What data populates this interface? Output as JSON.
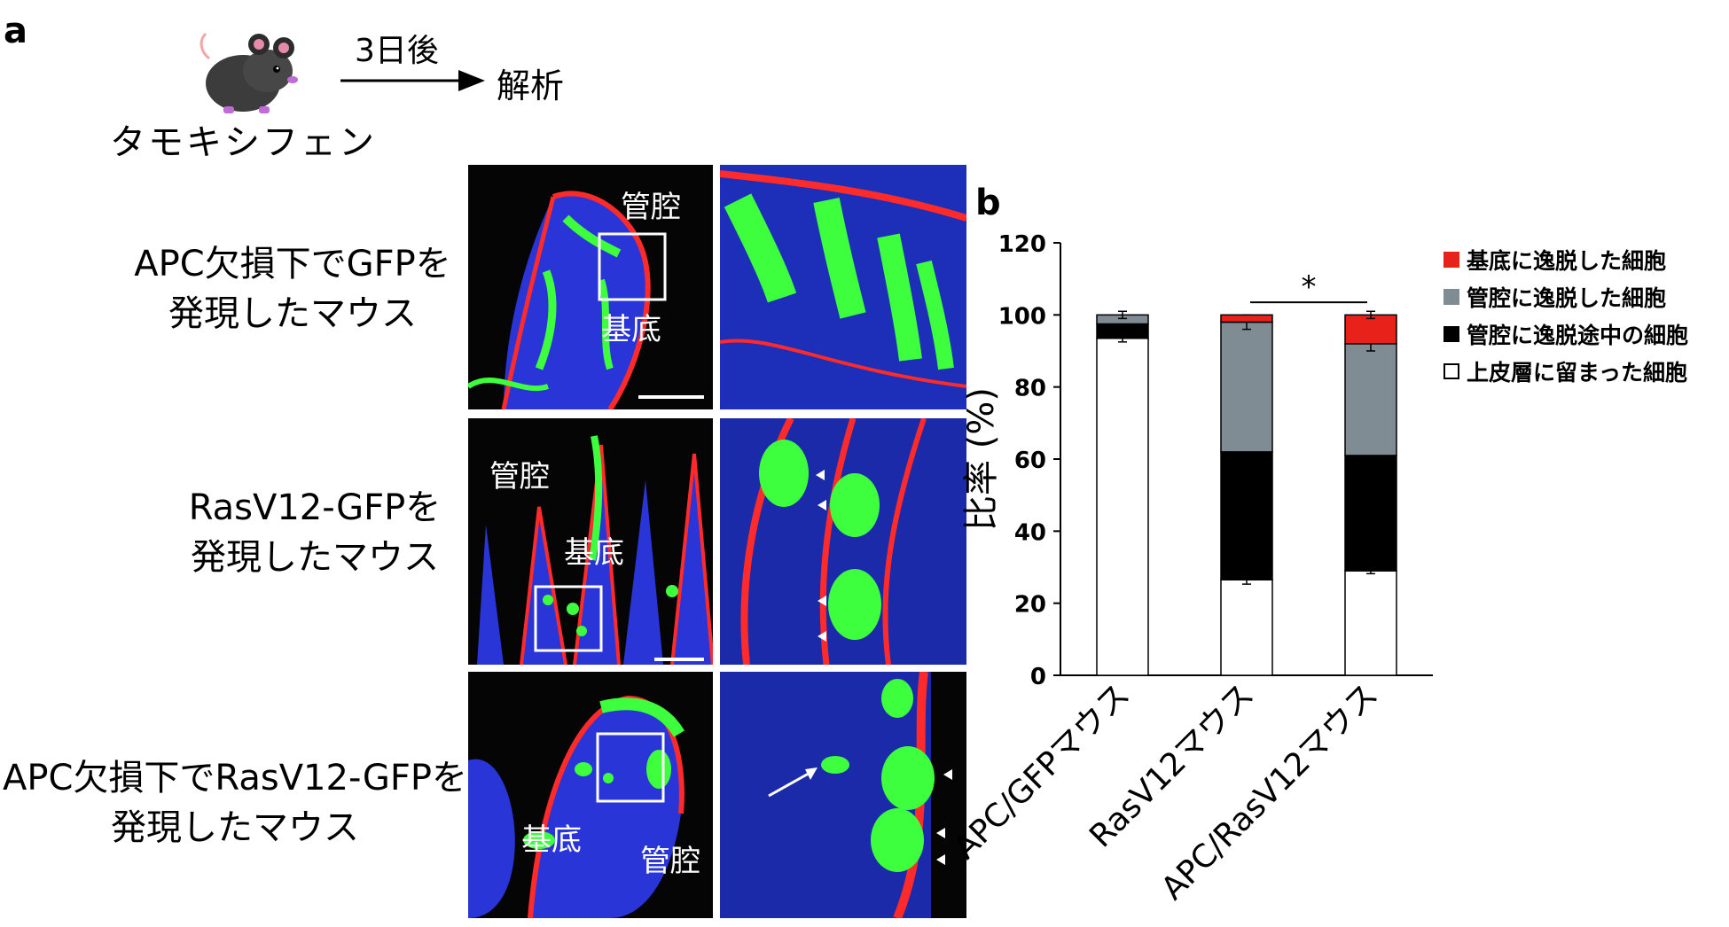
{
  "panel_a": {
    "letter": "a",
    "timeline": {
      "treatment": "タモキシフェン",
      "interval": "3日後",
      "outcome": "解析"
    },
    "rows": [
      {
        "label_lines": [
          "APC欠損下でGFPを",
          "発現したマウス"
        ],
        "left_labels": [
          "管腔",
          "基底"
        ]
      },
      {
        "label_lines": [
          "RasV12-GFPを",
          "発現したマウス"
        ],
        "left_labels": [
          "管腔",
          "基底"
        ]
      },
      {
        "label_lines": [
          "APC欠損下でRasV12-GFPを",
          "発現したマウス"
        ],
        "left_labels": [
          "基底",
          "管腔"
        ]
      }
    ],
    "colors": {
      "nuclei": "#1a3cff",
      "membrane": "#ff1a1a",
      "gfp": "#3dff3d",
      "background": "#050505"
    }
  },
  "panel_b": {
    "letter": "b",
    "significance": "*",
    "legend": [
      {
        "label": "基底に逸脱した細胞",
        "color": "#e8211b"
      },
      {
        "label": "管腔に逸脱した細胞",
        "color": "#7f8c93"
      },
      {
        "label": "管腔に逸脱途中の細胞",
        "color": "#000000"
      },
      {
        "label": "上皮層に留まった細胞",
        "color": "#ffffff"
      }
    ]
  },
  "chart_data": {
    "type": "bar",
    "stacked": true,
    "title": "",
    "xlabel": "",
    "ylabel": "比率 (%)",
    "ylim": [
      0,
      120
    ],
    "yticks": [
      0,
      20,
      40,
      60,
      80,
      100,
      120
    ],
    "categories": [
      "APC/GFPマウス",
      "RasV12マウス",
      "APC/RasV12マウス"
    ],
    "series": [
      {
        "name": "上皮層に留まった細胞",
        "color": "#ffffff",
        "values": [
          93.5,
          26.5,
          29
        ],
        "errors": [
          1,
          1.2,
          0.8
        ]
      },
      {
        "name": "管腔に逸脱途中の細胞",
        "color": "#000000",
        "values": [
          4,
          35.5,
          32
        ],
        "errors": [
          0,
          2.5,
          0.8
        ]
      },
      {
        "name": "管腔に逸脱した細胞",
        "color": "#7f8c93",
        "values": [
          2.5,
          36,
          31
        ],
        "errors": [
          1,
          2,
          2
        ]
      },
      {
        "name": "基底に逸脱した細胞",
        "color": "#e8211b",
        "values": [
          0,
          2,
          8
        ],
        "errors": [
          0,
          0,
          1
        ]
      }
    ],
    "significance": {
      "between": [
        "RasV12マウス",
        "APC/RasV12マウス"
      ],
      "marker": "*"
    },
    "grid": false,
    "legend_position": "top-right"
  }
}
